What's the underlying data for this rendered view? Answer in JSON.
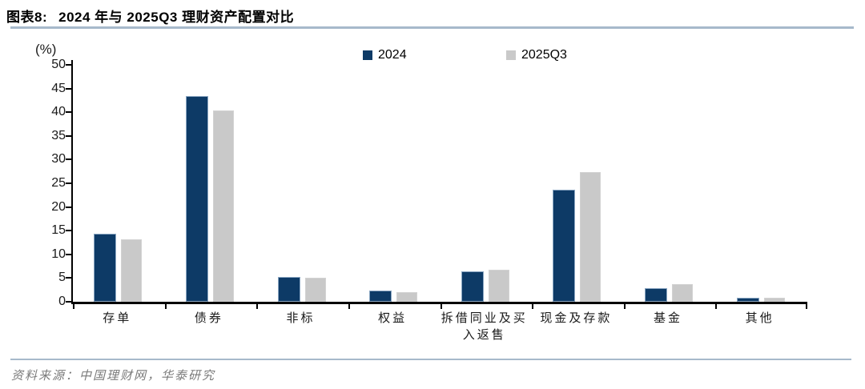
{
  "figure": {
    "label": "图表8:",
    "title": "2024 年与 2025Q3 理财资产配置对比",
    "source": "资料来源：中国理财网，华泰研究"
  },
  "chart_data": {
    "type": "bar",
    "title": "2024 年与 2025Q3 理财资产配置对比",
    "unit_label": "(%)",
    "categories": [
      "存单",
      "债券",
      "非标",
      "权益",
      "拆借同业及买入返售",
      "现金及存款",
      "基金",
      "其他"
    ],
    "series": [
      {
        "name": "2024",
        "color": "#0d3a66",
        "values": [
          14.4,
          43.4,
          5.3,
          2.4,
          6.4,
          23.7,
          2.8,
          0.8
        ]
      },
      {
        "name": "2025Q3",
        "color": "#c9c9c9",
        "values": [
          13.1,
          40.4,
          5.0,
          2.1,
          6.8,
          27.4,
          3.8,
          0.8
        ]
      }
    ],
    "ylim": [
      0,
      50
    ],
    "ytick_step": 5,
    "xlabel": "",
    "ylabel": "(%)",
    "legend_position": "top",
    "grid": false
  },
  "colors": {
    "rule": "#a7b9cb",
    "axis": "#000000",
    "bar_2024": "#0d3a66",
    "bar_2025q3": "#c9c9c9",
    "source_text": "#7a7a7a"
  }
}
